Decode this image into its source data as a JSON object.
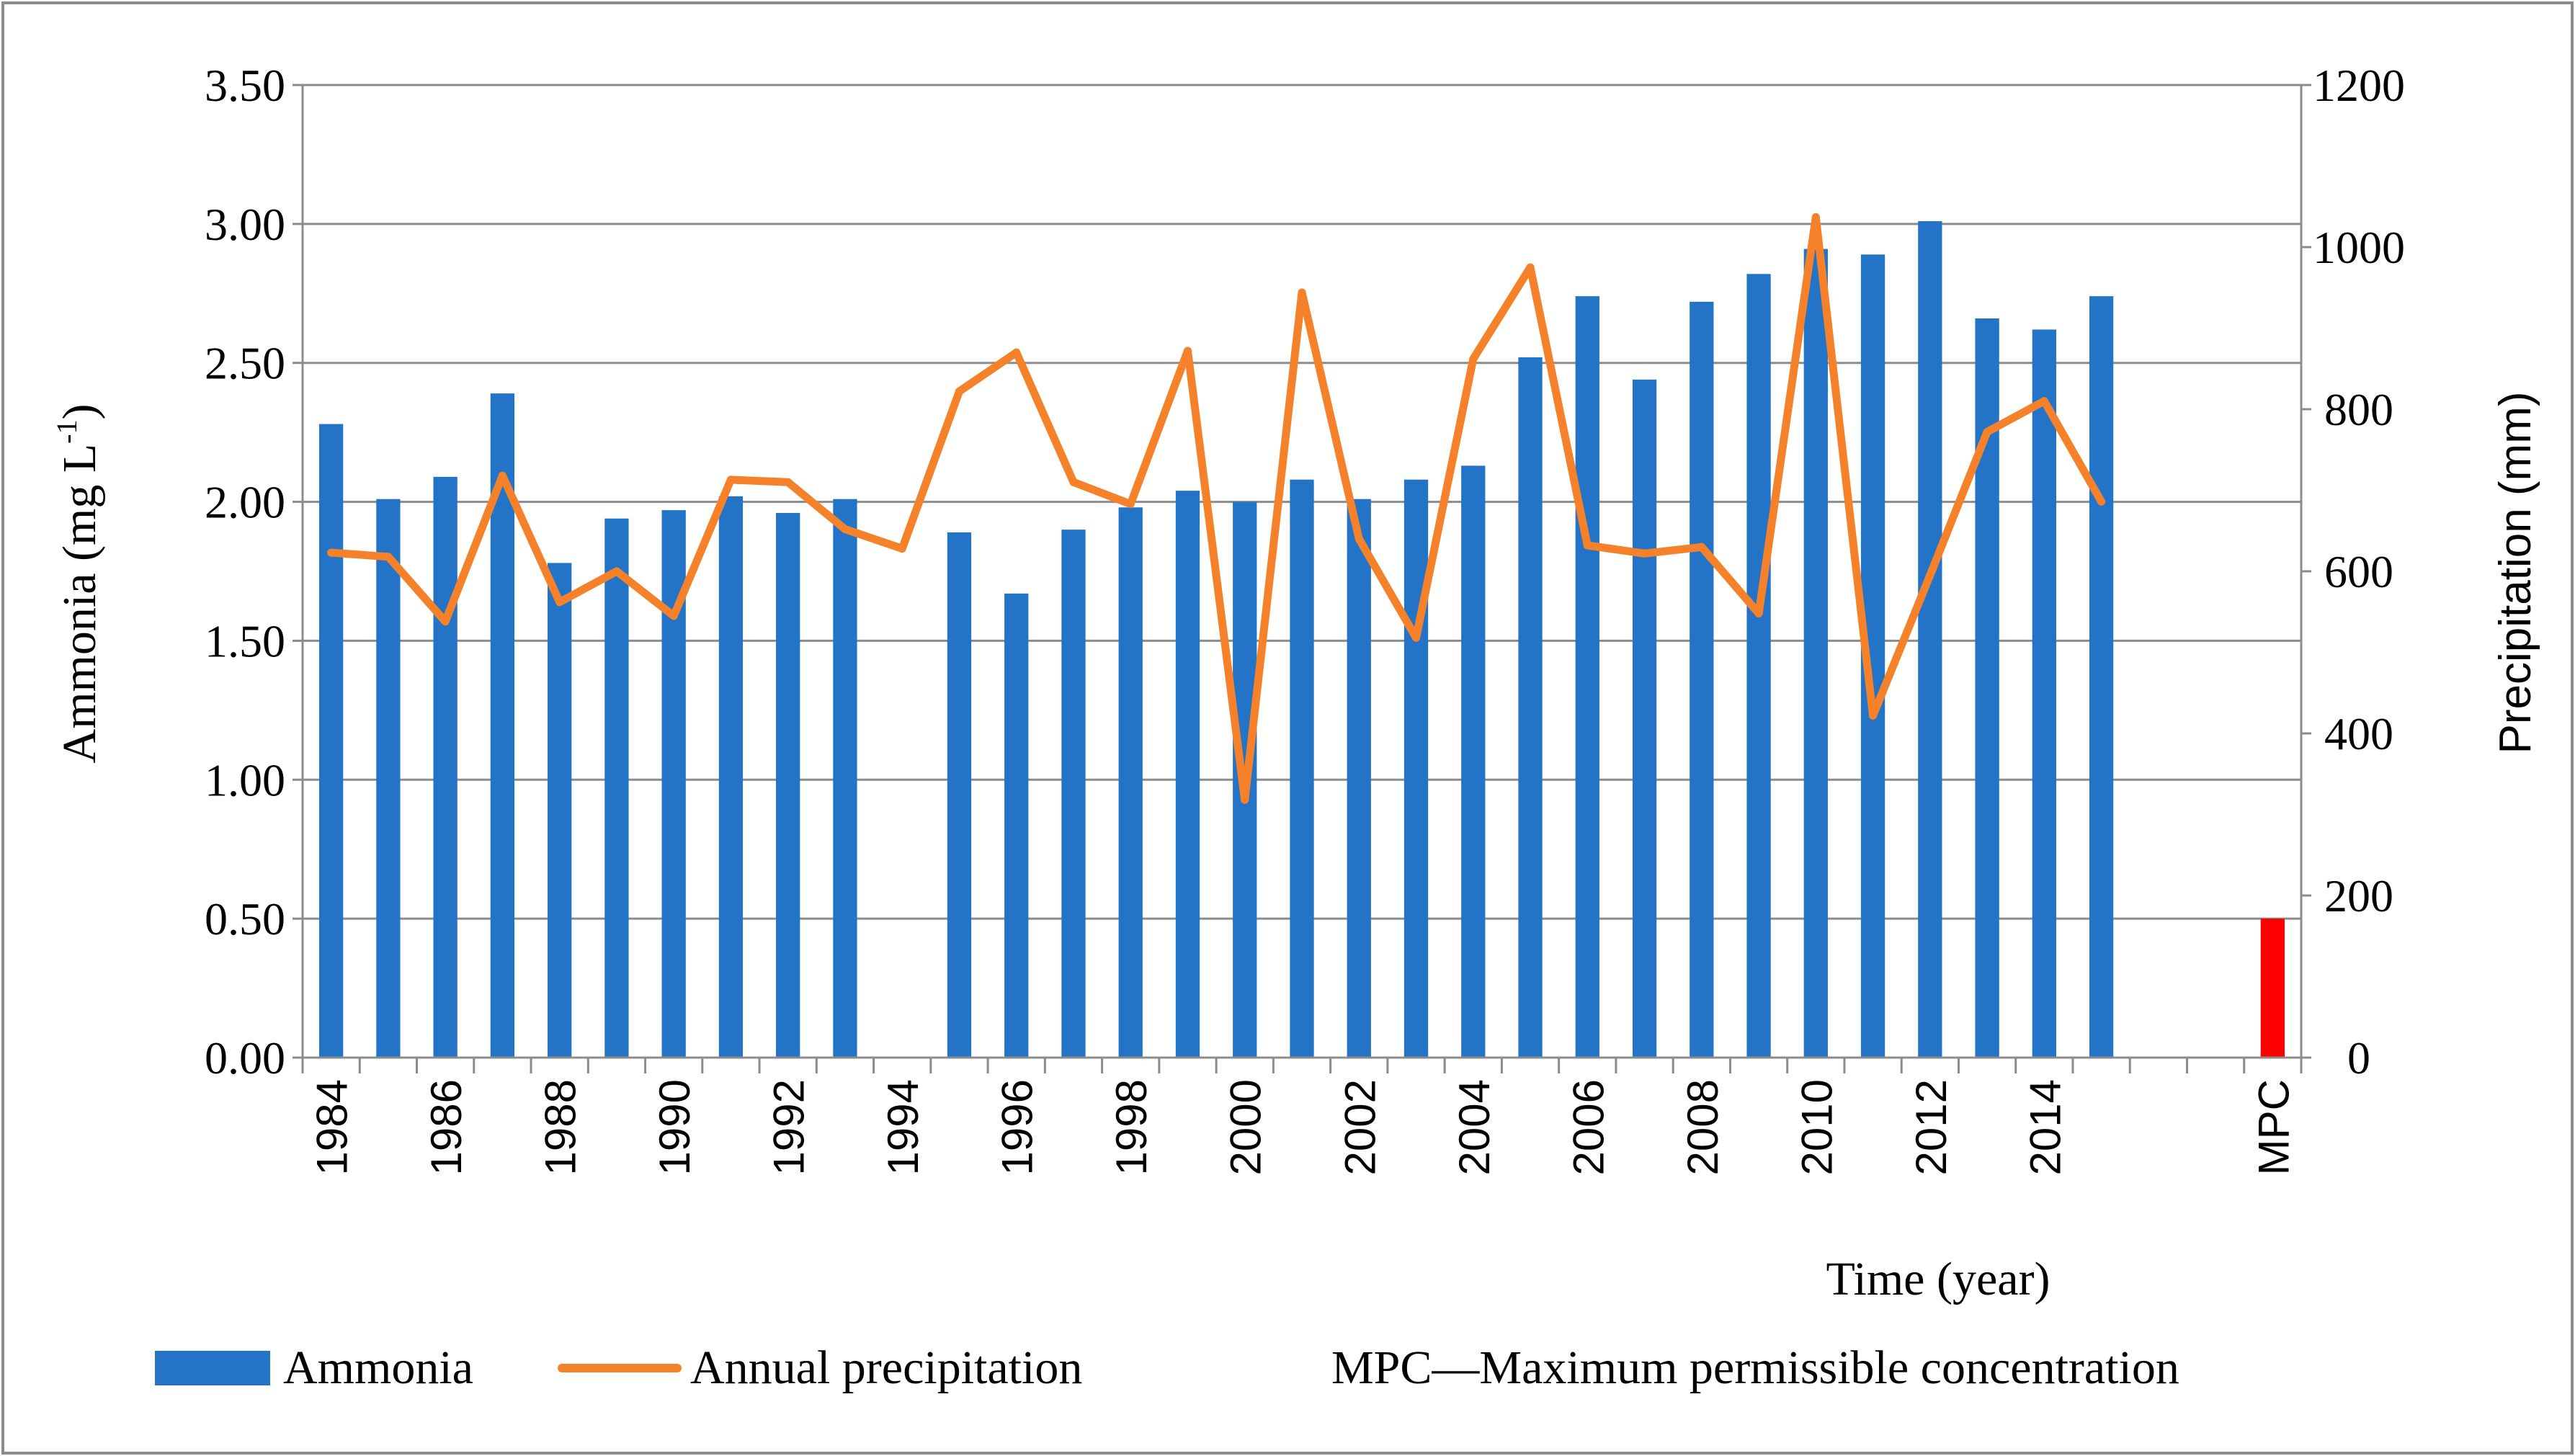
{
  "chart_data": {
    "type": "bar",
    "title": "",
    "xlabel": "Time (year)",
    "ylabel_left": "Ammonia (mg L",
    "ylabel_left_sup": "-1",
    "ylabel_left_close": ")",
    "ylabel_right": "Precipitation (mm)",
    "ylim_left": [
      0,
      3.5
    ],
    "ylim_right": [
      0,
      1200
    ],
    "left_ticks": [
      "0.00",
      "0.50",
      "1.00",
      "1.50",
      "2.00",
      "2.50",
      "3.00",
      "3.50"
    ],
    "right_ticks": [
      "0",
      "200",
      "400",
      "600",
      "800",
      "1000",
      "1200"
    ],
    "categories": [
      "1984",
      "1985",
      "1986",
      "1987",
      "1988",
      "1989",
      "1990",
      "1991",
      "1992",
      "1993",
      "1994",
      "1995",
      "1996",
      "1997",
      "1998",
      "1999",
      "2000",
      "2001",
      "2002",
      "2003",
      "2004",
      "2005",
      "2006",
      "2007",
      "2008",
      "2009",
      "2010",
      "2011",
      "2012",
      "2013",
      "2014",
      "2015",
      "",
      "",
      "MPC"
    ],
    "x_tick_labels": [
      "1984",
      "",
      "1986",
      "",
      "1988",
      "",
      "1990",
      "",
      "1992",
      "",
      "1994",
      "",
      "1996",
      "",
      "1998",
      "",
      "2000",
      "",
      "2002",
      "",
      "2004",
      "",
      "2006",
      "",
      "2008",
      "",
      "2010",
      "",
      "2012",
      "",
      "2014",
      "",
      "",
      "",
      "MPC"
    ],
    "series": [
      {
        "name": "Ammonia",
        "type": "bar",
        "axis": "left",
        "color": "#2374C6",
        "values": [
          2.28,
          2.01,
          2.09,
          2.39,
          1.78,
          1.94,
          1.97,
          2.02,
          1.96,
          2.01,
          null,
          1.89,
          1.67,
          1.9,
          1.98,
          2.04,
          2.0,
          2.08,
          2.01,
          2.08,
          2.13,
          2.52,
          2.74,
          2.44,
          2.72,
          2.82,
          2.91,
          2.89,
          3.01,
          2.66,
          2.62,
          2.74,
          null,
          null,
          null
        ]
      },
      {
        "name": "Annual precipitation",
        "type": "line",
        "axis": "right",
        "color": "#F5822A",
        "values": [
          623,
          618,
          538,
          718,
          562,
          600,
          545,
          713,
          710,
          652,
          628,
          822,
          870,
          710,
          683,
          872,
          318,
          944,
          640,
          518,
          862,
          975,
          632,
          622,
          630,
          548,
          1037,
          422,
          595,
          772,
          810,
          686,
          null,
          null,
          null
        ]
      },
      {
        "name": "MPC",
        "type": "bar",
        "axis": "left",
        "color": "#FF0000",
        "values": [
          null,
          null,
          null,
          null,
          null,
          null,
          null,
          null,
          null,
          null,
          null,
          null,
          null,
          null,
          null,
          null,
          null,
          null,
          null,
          null,
          null,
          null,
          null,
          null,
          null,
          null,
          null,
          null,
          null,
          null,
          null,
          null,
          null,
          null,
          0.5
        ]
      }
    ],
    "legend": {
      "placement": "bottom",
      "items": [
        "Ammonia",
        "Annual precipitation"
      ],
      "note": "MPC—Maximum permissible concentration"
    },
    "grid": true
  }
}
